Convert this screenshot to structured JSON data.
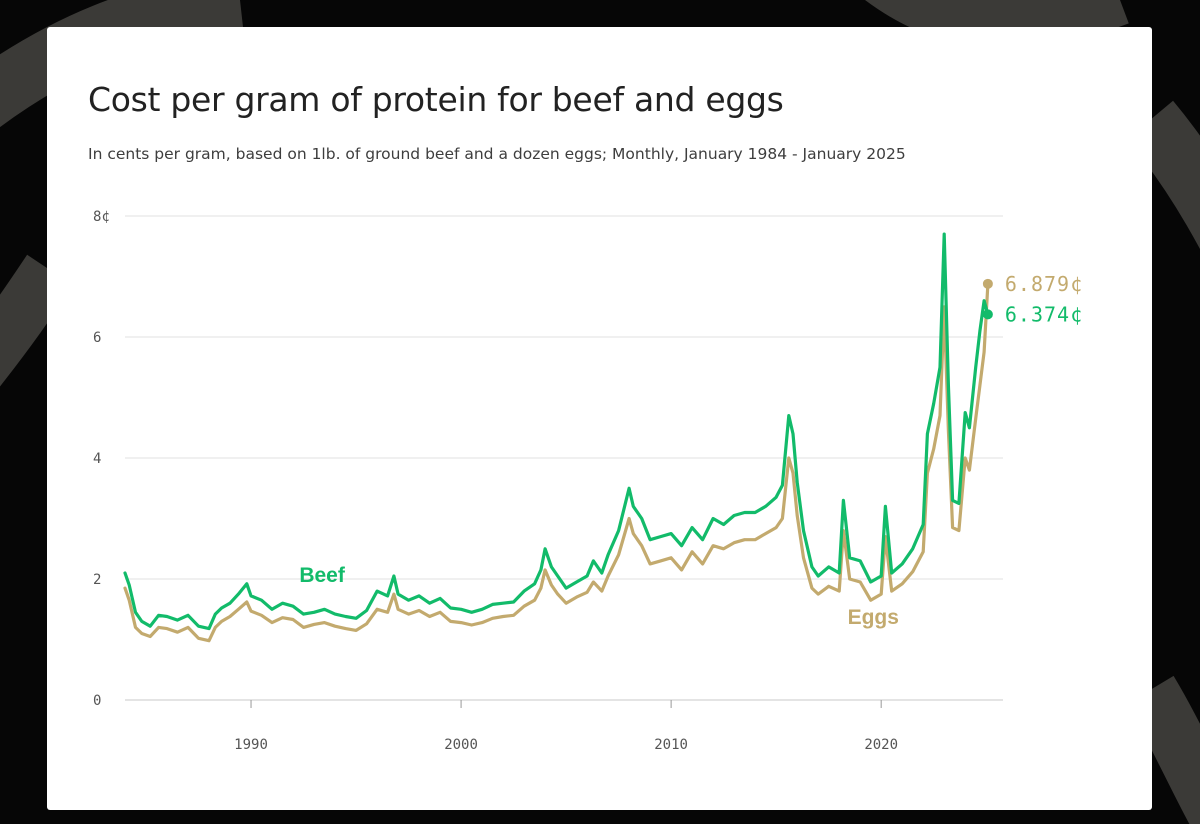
{
  "chart_data": {
    "type": "line",
    "title": "Cost per gram of protein for beef and eggs",
    "subtitle": "In cents per gram, based on 1lb. of ground beef and a dozen eggs; Monthly, January 1984 - January 2025",
    "xlabel": "",
    "ylabel": "",
    "xlim": [
      1984,
      2025.1
    ],
    "ylim": [
      0,
      8
    ],
    "x_ticks": [
      1990,
      2000,
      2010,
      2020
    ],
    "x_tick_labels": [
      "1990",
      "2000",
      "2010",
      "2020"
    ],
    "y_ticks": [
      0,
      2,
      4,
      6,
      8
    ],
    "y_tick_labels": [
      "0",
      "2",
      "4",
      "6",
      "8¢"
    ],
    "grid": "horizontal",
    "series": [
      {
        "name": "Beef",
        "color": "#12bb6a",
        "end_label": "6.374¢",
        "x": [
          1984.0,
          1984.2,
          1984.5,
          1984.8,
          1985.2,
          1985.6,
          1986.0,
          1986.5,
          1987.0,
          1987.5,
          1988.0,
          1988.3,
          1988.6,
          1989.0,
          1989.4,
          1989.8,
          1990.0,
          1990.5,
          1991.0,
          1991.5,
          1992.0,
          1992.5,
          1993.0,
          1993.5,
          1994.0,
          1994.5,
          1995.0,
          1995.5,
          1996.0,
          1996.5,
          1996.8,
          1997.0,
          1997.5,
          1998.0,
          1998.5,
          1999.0,
          1999.5,
          2000.0,
          2000.5,
          2001.0,
          2001.5,
          2002.0,
          2002.5,
          2003.0,
          2003.5,
          2003.8,
          2004.0,
          2004.3,
          2004.6,
          2005.0,
          2005.5,
          2006.0,
          2006.3,
          2006.7,
          2007.0,
          2007.5,
          2008.0,
          2008.2,
          2008.6,
          2009.0,
          2009.5,
          2010.0,
          2010.5,
          2011.0,
          2011.5,
          2012.0,
          2012.5,
          2013.0,
          2013.5,
          2014.0,
          2014.5,
          2015.0,
          2015.3,
          2015.6,
          2015.8,
          2016.0,
          2016.3,
          2016.7,
          2017.0,
          2017.5,
          2018.0,
          2018.2,
          2018.5,
          2019.0,
          2019.5,
          2020.0,
          2020.2,
          2020.5,
          2021.0,
          2021.5,
          2022.0,
          2022.2,
          2022.5,
          2022.8,
          2023.0,
          2023.2,
          2023.4,
          2023.7,
          2024.0,
          2024.2,
          2024.5,
          2024.7,
          2024.9,
          2025.08
        ],
        "values": [
          2.1,
          1.9,
          1.45,
          1.3,
          1.22,
          1.4,
          1.38,
          1.32,
          1.4,
          1.22,
          1.18,
          1.42,
          1.52,
          1.6,
          1.75,
          1.92,
          1.72,
          1.65,
          1.5,
          1.6,
          1.55,
          1.42,
          1.45,
          1.5,
          1.42,
          1.38,
          1.35,
          1.48,
          1.8,
          1.72,
          2.05,
          1.75,
          1.65,
          1.72,
          1.6,
          1.68,
          1.52,
          1.5,
          1.45,
          1.5,
          1.58,
          1.6,
          1.62,
          1.8,
          1.92,
          2.15,
          2.5,
          2.2,
          2.05,
          1.85,
          1.95,
          2.05,
          2.3,
          2.1,
          2.4,
          2.8,
          3.5,
          3.2,
          3.0,
          2.65,
          2.7,
          2.75,
          2.55,
          2.85,
          2.65,
          3.0,
          2.9,
          3.05,
          3.1,
          3.1,
          3.2,
          3.35,
          3.55,
          4.7,
          4.4,
          3.6,
          2.8,
          2.2,
          2.05,
          2.2,
          2.1,
          3.3,
          2.35,
          2.3,
          1.95,
          2.05,
          3.2,
          2.1,
          2.25,
          2.5,
          2.9,
          4.4,
          4.9,
          5.5,
          7.7,
          5.2,
          3.3,
          3.25,
          4.75,
          4.5,
          5.5,
          6.1,
          6.6,
          6.374
        ]
      },
      {
        "name": "Eggs",
        "color": "#c3aa6e",
        "end_label": "6.879¢",
        "x": [
          1984.0,
          1984.2,
          1984.5,
          1984.8,
          1985.2,
          1985.6,
          1986.0,
          1986.5,
          1987.0,
          1987.5,
          1988.0,
          1988.3,
          1988.6,
          1989.0,
          1989.4,
          1989.8,
          1990.0,
          1990.5,
          1991.0,
          1991.5,
          1992.0,
          1992.5,
          1993.0,
          1993.5,
          1994.0,
          1994.5,
          1995.0,
          1995.5,
          1996.0,
          1996.5,
          1996.8,
          1997.0,
          1997.5,
          1998.0,
          1998.5,
          1999.0,
          1999.5,
          2000.0,
          2000.5,
          2001.0,
          2001.5,
          2002.0,
          2002.5,
          2003.0,
          2003.5,
          2003.8,
          2004.0,
          2004.3,
          2004.6,
          2005.0,
          2005.5,
          2006.0,
          2006.3,
          2006.7,
          2007.0,
          2007.5,
          2008.0,
          2008.2,
          2008.6,
          2009.0,
          2009.5,
          2010.0,
          2010.5,
          2011.0,
          2011.5,
          2012.0,
          2012.5,
          2013.0,
          2013.5,
          2014.0,
          2014.5,
          2015.0,
          2015.3,
          2015.6,
          2015.8,
          2016.0,
          2016.3,
          2016.7,
          2017.0,
          2017.5,
          2018.0,
          2018.2,
          2018.5,
          2019.0,
          2019.5,
          2020.0,
          2020.2,
          2020.5,
          2021.0,
          2021.5,
          2022.0,
          2022.2,
          2022.5,
          2022.8,
          2023.0,
          2023.2,
          2023.4,
          2023.7,
          2024.0,
          2024.2,
          2024.5,
          2024.7,
          2024.9,
          2025.08
        ],
        "values": [
          1.85,
          1.65,
          1.2,
          1.1,
          1.05,
          1.2,
          1.18,
          1.12,
          1.2,
          1.02,
          0.98,
          1.2,
          1.3,
          1.38,
          1.5,
          1.62,
          1.47,
          1.4,
          1.28,
          1.36,
          1.33,
          1.2,
          1.25,
          1.28,
          1.22,
          1.18,
          1.15,
          1.26,
          1.5,
          1.45,
          1.75,
          1.5,
          1.42,
          1.48,
          1.38,
          1.45,
          1.3,
          1.28,
          1.24,
          1.28,
          1.35,
          1.38,
          1.4,
          1.55,
          1.65,
          1.85,
          2.15,
          1.9,
          1.75,
          1.6,
          1.7,
          1.78,
          1.95,
          1.8,
          2.05,
          2.4,
          3.0,
          2.75,
          2.55,
          2.25,
          2.3,
          2.35,
          2.15,
          2.45,
          2.25,
          2.55,
          2.5,
          2.6,
          2.65,
          2.65,
          2.75,
          2.85,
          3.0,
          4.0,
          3.75,
          3.05,
          2.35,
          1.85,
          1.75,
          1.88,
          1.8,
          2.8,
          2.0,
          1.95,
          1.65,
          1.75,
          2.7,
          1.8,
          1.92,
          2.12,
          2.45,
          3.75,
          4.15,
          4.7,
          6.5,
          4.45,
          2.85,
          2.8,
          4.0,
          3.8,
          4.65,
          5.2,
          5.75,
          6.879
        ]
      }
    ],
    "annotations": [
      {
        "text": "Beef",
        "x": 1992.3,
        "y": 1.95,
        "color": "#12bb6a"
      },
      {
        "text": "Eggs",
        "x": 2018.4,
        "y": 1.26,
        "color": "#c3aa6e"
      }
    ]
  }
}
